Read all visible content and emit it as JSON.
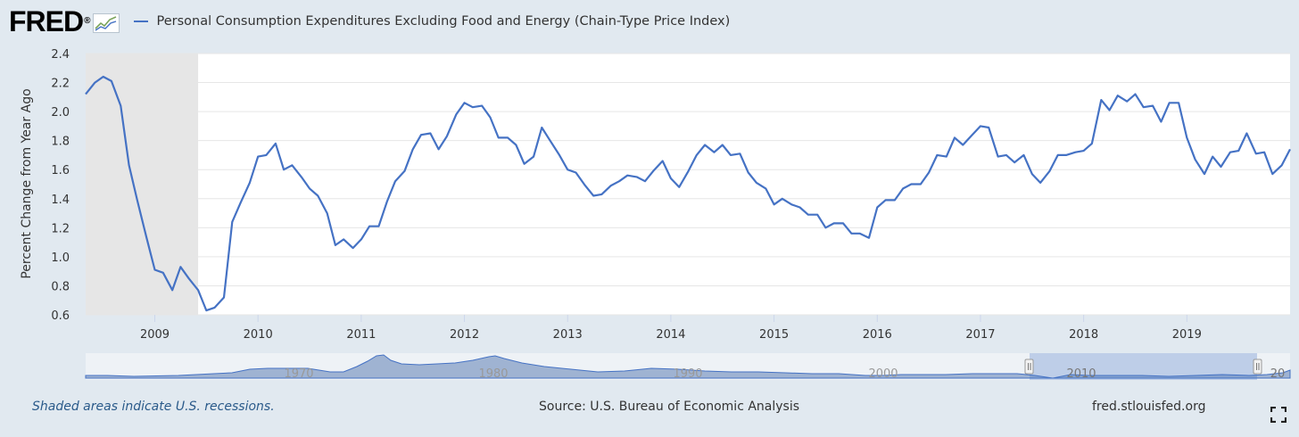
{
  "header": {
    "logo_text": "FRED",
    "logo_mark": "®",
    "logo_icon": "line-graph-icon"
  },
  "chart_data": {
    "type": "line",
    "legend_position": "top-left",
    "grid": true,
    "ylabel": "Percent Change from Year Ago",
    "ylim": [
      0.6,
      2.4
    ],
    "yticks": [
      "0.6",
      "0.8",
      "1.0",
      "1.2",
      "1.4",
      "1.6",
      "1.8",
      "2.0",
      "2.2",
      "2.4"
    ],
    "xlim": [
      2008.33,
      2019.92
    ],
    "xticks": [
      "2009",
      "2010",
      "2011",
      "2012",
      "2013",
      "2014",
      "2015",
      "2016",
      "2017",
      "2018",
      "2019"
    ],
    "recession": [
      2008.33,
      2009.42
    ],
    "series": [
      {
        "name": "Personal Consumption Expenditures Excluding Food and Energy (Chain-Type Price Index)",
        "color": "#4572c4",
        "points": [
          [
            2008.33,
            2.12
          ],
          [
            2008.42,
            2.2
          ],
          [
            2008.5,
            2.24
          ],
          [
            2008.58,
            2.21
          ],
          [
            2008.67,
            2.04
          ],
          [
            2008.75,
            1.63
          ],
          [
            2008.83,
            1.39
          ],
          [
            2008.92,
            1.13
          ],
          [
            2009.0,
            0.91
          ],
          [
            2009.08,
            0.89
          ],
          [
            2009.17,
            0.77
          ],
          [
            2009.25,
            0.93
          ],
          [
            2009.33,
            0.85
          ],
          [
            2009.42,
            0.77
          ],
          [
            2009.5,
            0.63
          ],
          [
            2009.58,
            0.65
          ],
          [
            2009.67,
            0.72
          ],
          [
            2009.75,
            1.24
          ],
          [
            2009.83,
            1.37
          ],
          [
            2009.92,
            1.51
          ],
          [
            2010.0,
            1.69
          ],
          [
            2010.08,
            1.7
          ],
          [
            2010.17,
            1.78
          ],
          [
            2010.25,
            1.6
          ],
          [
            2010.33,
            1.63
          ],
          [
            2010.42,
            1.55
          ],
          [
            2010.5,
            1.47
          ],
          [
            2010.58,
            1.42
          ],
          [
            2010.67,
            1.3
          ],
          [
            2010.75,
            1.08
          ],
          [
            2010.83,
            1.12
          ],
          [
            2010.92,
            1.06
          ],
          [
            2011.0,
            1.12
          ],
          [
            2011.08,
            1.21
          ],
          [
            2011.17,
            1.21
          ],
          [
            2011.25,
            1.38
          ],
          [
            2011.33,
            1.52
          ],
          [
            2011.42,
            1.59
          ],
          [
            2011.5,
            1.74
          ],
          [
            2011.58,
            1.84
          ],
          [
            2011.67,
            1.85
          ],
          [
            2011.75,
            1.74
          ],
          [
            2011.83,
            1.83
          ],
          [
            2011.92,
            1.98
          ],
          [
            2012.0,
            2.06
          ],
          [
            2012.08,
            2.03
          ],
          [
            2012.17,
            2.04
          ],
          [
            2012.25,
            1.96
          ],
          [
            2012.33,
            1.82
          ],
          [
            2012.42,
            1.82
          ],
          [
            2012.5,
            1.77
          ],
          [
            2012.58,
            1.64
          ],
          [
            2012.67,
            1.69
          ],
          [
            2012.75,
            1.89
          ],
          [
            2012.83,
            1.8
          ],
          [
            2012.92,
            1.7
          ],
          [
            2013.0,
            1.6
          ],
          [
            2013.08,
            1.58
          ],
          [
            2013.17,
            1.49
          ],
          [
            2013.25,
            1.42
          ],
          [
            2013.33,
            1.43
          ],
          [
            2013.42,
            1.49
          ],
          [
            2013.5,
            1.52
          ],
          [
            2013.58,
            1.56
          ],
          [
            2013.67,
            1.55
          ],
          [
            2013.75,
            1.52
          ],
          [
            2013.83,
            1.59
          ],
          [
            2013.92,
            1.66
          ],
          [
            2014.0,
            1.54
          ],
          [
            2014.08,
            1.48
          ],
          [
            2014.17,
            1.59
          ],
          [
            2014.25,
            1.7
          ],
          [
            2014.33,
            1.77
          ],
          [
            2014.42,
            1.72
          ],
          [
            2014.5,
            1.77
          ],
          [
            2014.58,
            1.7
          ],
          [
            2014.67,
            1.71
          ],
          [
            2014.75,
            1.58
          ],
          [
            2014.83,
            1.51
          ],
          [
            2014.92,
            1.47
          ],
          [
            2015.0,
            1.36
          ],
          [
            2015.08,
            1.4
          ],
          [
            2015.17,
            1.36
          ],
          [
            2015.25,
            1.34
          ],
          [
            2015.33,
            1.29
          ],
          [
            2015.42,
            1.29
          ],
          [
            2015.5,
            1.2
          ],
          [
            2015.58,
            1.23
          ],
          [
            2015.67,
            1.23
          ],
          [
            2015.75,
            1.16
          ],
          [
            2015.83,
            1.16
          ],
          [
            2015.92,
            1.13
          ],
          [
            2016.0,
            1.34
          ],
          [
            2016.08,
            1.39
          ],
          [
            2016.17,
            1.39
          ],
          [
            2016.25,
            1.47
          ],
          [
            2016.33,
            1.5
          ],
          [
            2016.42,
            1.5
          ],
          [
            2016.5,
            1.58
          ],
          [
            2016.58,
            1.7
          ],
          [
            2016.67,
            1.69
          ],
          [
            2016.75,
            1.82
          ],
          [
            2016.83,
            1.77
          ],
          [
            2016.92,
            1.84
          ],
          [
            2017.0,
            1.9
          ],
          [
            2017.08,
            1.89
          ],
          [
            2017.17,
            1.69
          ],
          [
            2017.25,
            1.7
          ],
          [
            2017.33,
            1.65
          ],
          [
            2017.42,
            1.7
          ],
          [
            2017.5,
            1.57
          ],
          [
            2017.58,
            1.51
          ],
          [
            2017.67,
            1.59
          ],
          [
            2017.75,
            1.7
          ],
          [
            2017.83,
            1.7
          ],
          [
            2017.92,
            1.72
          ],
          [
            2018.0,
            1.73
          ],
          [
            2018.08,
            1.78
          ],
          [
            2018.17,
            2.08
          ],
          [
            2018.25,
            2.01
          ],
          [
            2018.33,
            2.11
          ],
          [
            2018.42,
            2.07
          ],
          [
            2018.5,
            2.12
          ],
          [
            2018.58,
            2.03
          ],
          [
            2018.67,
            2.04
          ],
          [
            2018.75,
            1.93
          ],
          [
            2018.83,
            2.06
          ],
          [
            2018.92,
            2.06
          ],
          [
            2019.0,
            1.82
          ],
          [
            2019.08,
            1.67
          ],
          [
            2019.17,
            1.57
          ],
          [
            2019.25,
            1.69
          ],
          [
            2019.33,
            1.62
          ],
          [
            2019.42,
            1.72
          ],
          [
            2019.5,
            1.73
          ],
          [
            2019.58,
            1.85
          ],
          [
            2019.67,
            1.71
          ],
          [
            2019.75,
            1.72
          ],
          [
            2019.83,
            1.57
          ],
          [
            2019.92,
            1.63
          ],
          [
            2020.0,
            1.74
          ]
        ]
      }
    ]
  },
  "navigator": {
    "labels": [
      "1970",
      "1980",
      "1990",
      "2000",
      "2010",
      "20"
    ]
  },
  "footer": {
    "recession_note": "Shaded areas indicate U.S. recessions.",
    "source": "Source: U.S. Bureau of Economic Analysis",
    "link": "fred.stlouisfed.org"
  },
  "icons": {
    "fullscreen": "fullscreen-icon"
  }
}
